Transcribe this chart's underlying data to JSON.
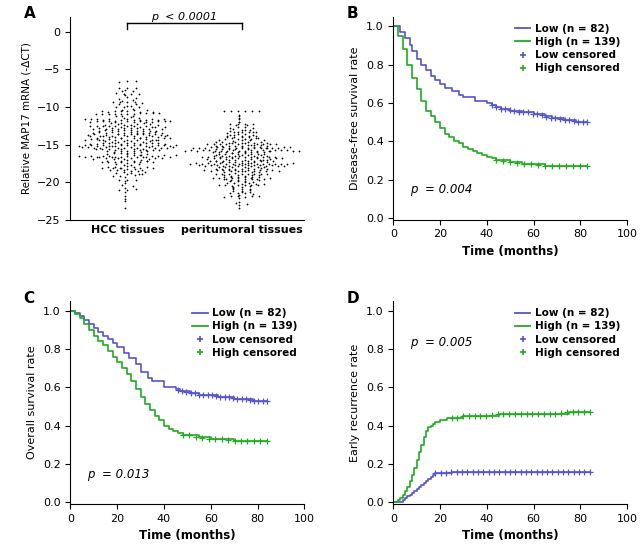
{
  "panel_A": {
    "title_label": "A",
    "ylabel": "Relative MAP17 mRNA (-ΔCT)",
    "group1_label": "HCC tissues",
    "group2_label": "peritumoral tissues",
    "ylim": [
      -25,
      2
    ],
    "yticks": [
      0,
      -5,
      -10,
      -15,
      -20,
      -25
    ],
    "pvalue_text": "p  < 0.0001",
    "group1_mean": -14.5,
    "group1_std": 3.2,
    "group1_n": 360,
    "group2_mean": -16.8,
    "group2_std": 2.5,
    "group2_n": 360
  },
  "panel_B": {
    "title_label": "B",
    "ylabel": "Disease-free survival rate",
    "xlabel": "Time (months)",
    "pvalue_text": "p  = 0.004",
    "pvalue_x": 0.07,
    "pvalue_y": 0.13,
    "low_n": 82,
    "high_n": 139,
    "xlim": [
      0,
      100
    ],
    "ylim": [
      0.0,
      1.05
    ],
    "yticks": [
      0.0,
      0.2,
      0.4,
      0.6,
      0.8,
      1.0
    ],
    "xticks": [
      0,
      20,
      40,
      60,
      80,
      100
    ],
    "low_color": "#5555cc",
    "high_color": "#22aa22"
  },
  "panel_C": {
    "title_label": "C",
    "ylabel": "Overall survival rate",
    "xlabel": "Time (months)",
    "pvalue_text": "p  = 0.013",
    "pvalue_x": 0.07,
    "pvalue_y": 0.13,
    "low_n": 82,
    "high_n": 139,
    "xlim": [
      0,
      100
    ],
    "ylim": [
      0.0,
      1.05
    ],
    "yticks": [
      0.0,
      0.2,
      0.4,
      0.6,
      0.8,
      1.0
    ],
    "xticks": [
      0,
      20,
      40,
      60,
      80,
      100
    ],
    "low_color": "#5555cc",
    "high_color": "#22aa22"
  },
  "panel_D": {
    "title_label": "D",
    "ylabel": "Early recurrence rate",
    "xlabel": "Time (months)",
    "pvalue_text": "p  = 0.005",
    "pvalue_x": 0.07,
    "pvalue_y": 0.78,
    "low_n": 82,
    "high_n": 139,
    "xlim": [
      0,
      100
    ],
    "ylim": [
      0.0,
      1.05
    ],
    "yticks": [
      0.0,
      0.2,
      0.4,
      0.6,
      0.8,
      1.0
    ],
    "xticks": [
      0,
      20,
      40,
      60,
      80,
      100
    ],
    "low_color": "#5555cc",
    "high_color": "#22aa22"
  },
  "bg_color": "#ffffff",
  "dot_color": "#000000"
}
